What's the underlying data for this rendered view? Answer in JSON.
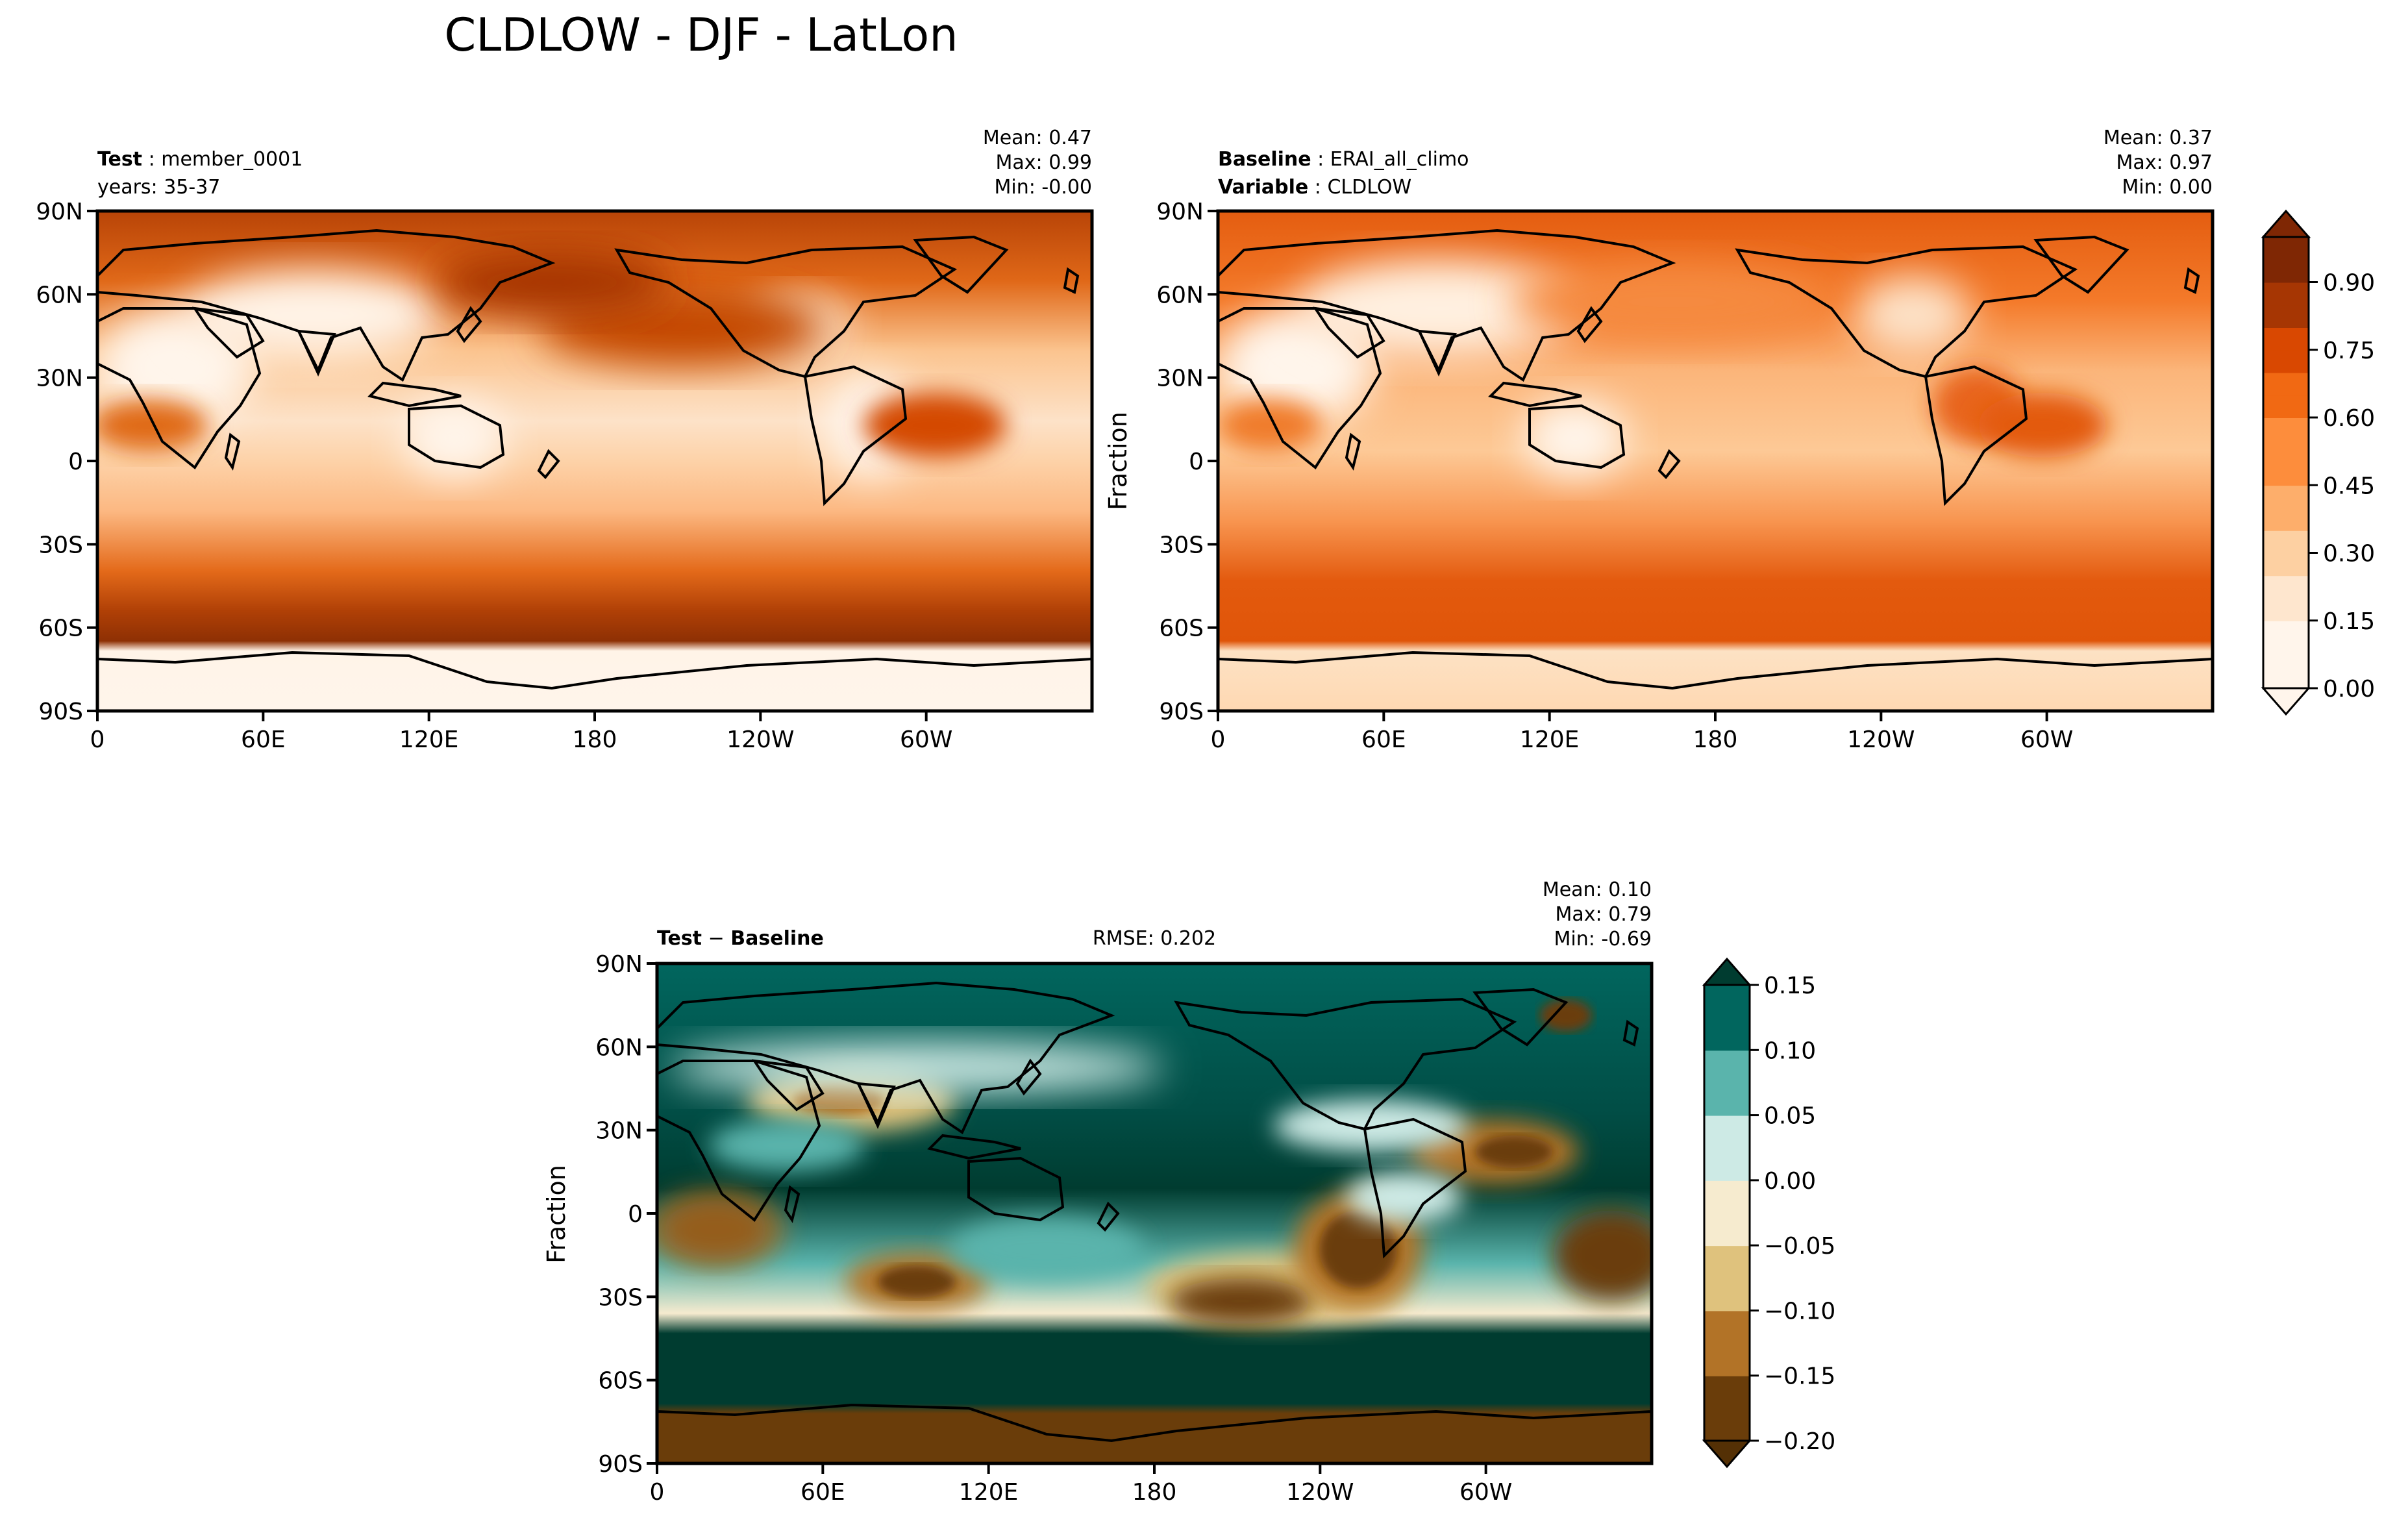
{
  "figure": {
    "title": "CLDLOW - DJF - LatLon"
  },
  "panels": {
    "test": {
      "label_bold": "Test",
      "label_value": "member_0001",
      "years": "years: 35-37",
      "stats": {
        "mean": "Mean:  0.47",
        "max": "Max:  0.99",
        "min": "Min: -0.00"
      }
    },
    "baseline": {
      "label_bold": "Baseline",
      "label_value": "ERAI_all_climo",
      "variable_bold": "Variable",
      "variable_value": "CLDLOW",
      "ylabel": "Fraction",
      "stats": {
        "mean": "Mean:  0.37",
        "max": "Max:  0.97",
        "min": "Min:  0.00"
      }
    },
    "diff": {
      "label_bold_1": "Test",
      "label_sep": " − ",
      "label_bold_2": "Baseline",
      "rmse": "RMSE: 0.202",
      "ylabel": "Fraction",
      "stats": {
        "mean": "Mean:  0.10",
        "max": "Max:  0.79",
        "min": "Min: -0.69"
      }
    }
  },
  "axes": {
    "lat_ticks": [
      "90N",
      "60N",
      "30N",
      "0",
      "30S",
      "60S",
      "90S"
    ],
    "lon_ticks": [
      "0",
      "60E",
      "120E",
      "180",
      "120W",
      "60W"
    ]
  },
  "colorbars": {
    "main": {
      "tick_labels": [
        "0.00",
        "0.15",
        "0.30",
        "0.45",
        "0.60",
        "0.75",
        "0.90"
      ],
      "colors": [
        "#fff5eb",
        "#fee6ce",
        "#fdd0a2",
        "#fdae6b",
        "#fd8d3c",
        "#f16913",
        "#d94801",
        "#a63603",
        "#7f2704"
      ]
    },
    "diff": {
      "tick_labels": [
        "−0.20",
        "−0.15",
        "−0.10",
        "−0.05",
        "0.00",
        "0.05",
        "0.10",
        "0.15"
      ],
      "colors": [
        "#6a3d0a",
        "#b27327",
        "#dfc27d",
        "#f6ebcf",
        "#cdeae5",
        "#5ab4ac",
        "#01665e"
      ]
    }
  },
  "chart_data": [
    {
      "type": "heatmap",
      "title": "Test : member_0001",
      "subtitle": "years: 35-37",
      "variable": "CLDLOW",
      "season": "DJF",
      "projection": "LatLon",
      "xlabel": "",
      "ylabel": "",
      "xlim": [
        0,
        360
      ],
      "ylim": [
        -90,
        90
      ],
      "stats": {
        "mean": 0.47,
        "max": 0.99,
        "min": -0.0
      },
      "colorbar_levels": [
        0.0,
        0.15,
        0.3,
        0.45,
        0.6,
        0.75,
        0.9
      ]
    },
    {
      "type": "heatmap",
      "title": "Baseline : ERAI_all_climo",
      "subtitle": "Variable : CLDLOW",
      "xlabel": "",
      "ylabel": "Fraction",
      "xlim": [
        0,
        360
      ],
      "ylim": [
        -90,
        90
      ],
      "stats": {
        "mean": 0.37,
        "max": 0.97,
        "min": 0.0
      },
      "colorbar_levels": [
        0.0,
        0.15,
        0.3,
        0.45,
        0.6,
        0.75,
        0.9
      ]
    },
    {
      "type": "heatmap",
      "title": "Test − Baseline",
      "rmse": 0.202,
      "xlabel": "",
      "ylabel": "Fraction",
      "xlim": [
        0,
        360
      ],
      "ylim": [
        -90,
        90
      ],
      "stats": {
        "mean": 0.1,
        "max": 0.79,
        "min": -0.69
      },
      "colorbar_levels": [
        -0.2,
        -0.15,
        -0.1,
        -0.05,
        0.0,
        0.05,
        0.1,
        0.15
      ]
    }
  ]
}
